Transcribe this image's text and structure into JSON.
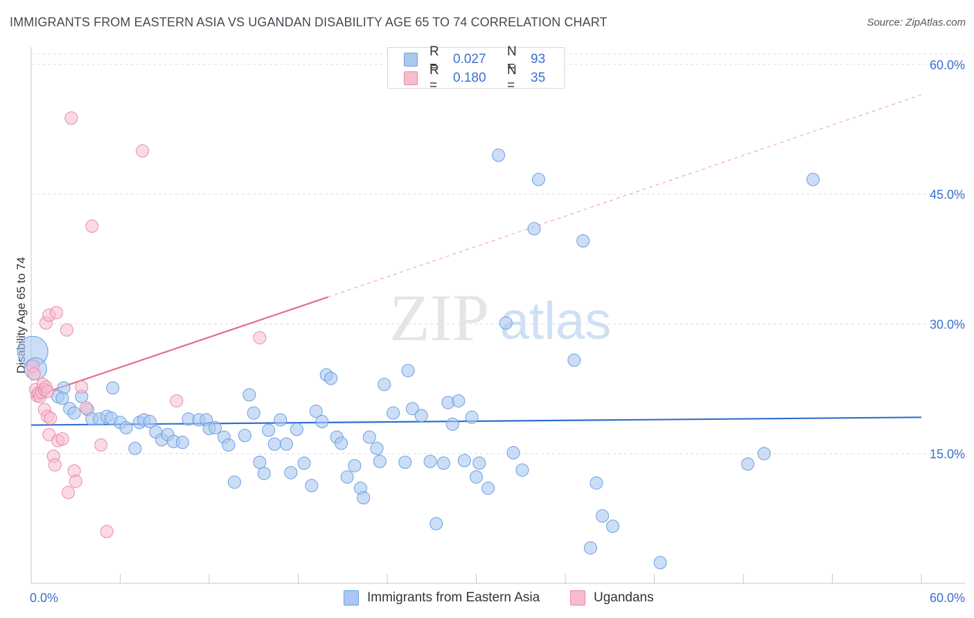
{
  "title": "IMMIGRANTS FROM EASTERN ASIA VS UGANDAN DISABILITY AGE 65 TO 74 CORRELATION CHART",
  "source": "Source: ZipAtlas.com",
  "watermark": {
    "zip": "ZIP",
    "atlas": "atlas"
  },
  "colors": {
    "blue_fill": "#aac8f0",
    "blue_stroke": "#6a9ee0",
    "blue_line": "#2e6fd0",
    "pink_fill": "#f6bcd0",
    "pink_stroke": "#e889aa",
    "pink_line": "#e46a94",
    "axis_text": "#3a6fd0",
    "grid": "#dcdcdc"
  },
  "legend": {
    "rows": [
      {
        "r_label": "R =",
        "r_value": "0.027",
        "n_label": "N =",
        "n_value": "93"
      },
      {
        "r_label": "R =",
        "r_value": "0.180",
        "n_label": "N =",
        "n_value": "35"
      }
    ]
  },
  "bottom_legend": {
    "blue": "Immigrants from Eastern Asia",
    "pink": "Ugandans"
  },
  "chart_data": {
    "type": "scatter",
    "title": "IMMIGRANTS FROM EASTERN ASIA VS UGANDAN DISABILITY AGE 65 TO 74 CORRELATION CHART",
    "xlabel": "",
    "ylabel": "Disability Age 65 to 74",
    "xlim": [
      0,
      60
    ],
    "ylim": [
      0,
      62
    ],
    "x_tick_labels": [
      "0.0%",
      "60.0%"
    ],
    "y_ticks": [
      15,
      30,
      45,
      60
    ],
    "y_tick_labels": [
      "15.0%",
      "30.0%",
      "45.0%",
      "60.0%"
    ],
    "grid": true,
    "legend_position": "top-center",
    "series": [
      {
        "name": "Immigrants from Eastern Asia",
        "r": 0.027,
        "n": 93,
        "trend": {
          "x0": 0,
          "y0": 18.3,
          "x1": 60,
          "y1": 19.2
        },
        "points": [
          {
            "x": 0.1,
            "y": 26.8,
            "s": 22
          },
          {
            "x": 0.3,
            "y": 24.8,
            "s": 16
          },
          {
            "x": 2.2,
            "y": 22.6,
            "s": 9
          },
          {
            "x": 1.8,
            "y": 21.6,
            "s": 9
          },
          {
            "x": 2.1,
            "y": 21.4,
            "s": 9
          },
          {
            "x": 3.4,
            "y": 21.6,
            "s": 9
          },
          {
            "x": 5.5,
            "y": 22.6,
            "s": 9
          },
          {
            "x": 2.6,
            "y": 20.2,
            "s": 9
          },
          {
            "x": 3.8,
            "y": 20.1,
            "s": 9
          },
          {
            "x": 2.9,
            "y": 19.7,
            "s": 9
          },
          {
            "x": 4.1,
            "y": 19.0,
            "s": 9
          },
          {
            "x": 4.6,
            "y": 19.0,
            "s": 9
          },
          {
            "x": 5.1,
            "y": 19.3,
            "s": 9
          },
          {
            "x": 5.4,
            "y": 19.1,
            "s": 9
          },
          {
            "x": 6.0,
            "y": 18.6,
            "s": 9
          },
          {
            "x": 6.4,
            "y": 18.0,
            "s": 9
          },
          {
            "x": 7.3,
            "y": 18.6,
            "s": 9
          },
          {
            "x": 7.6,
            "y": 18.9,
            "s": 9
          },
          {
            "x": 8.0,
            "y": 18.7,
            "s": 9
          },
          {
            "x": 8.4,
            "y": 17.5,
            "s": 9
          },
          {
            "x": 8.8,
            "y": 16.6,
            "s": 9
          },
          {
            "x": 9.2,
            "y": 17.2,
            "s": 9
          },
          {
            "x": 9.6,
            "y": 16.4,
            "s": 9
          },
          {
            "x": 10.2,
            "y": 16.3,
            "s": 9
          },
          {
            "x": 10.6,
            "y": 19.0,
            "s": 9
          },
          {
            "x": 11.3,
            "y": 18.9,
            "s": 9
          },
          {
            "x": 11.8,
            "y": 18.9,
            "s": 9
          },
          {
            "x": 12.0,
            "y": 17.9,
            "s": 9
          },
          {
            "x": 12.4,
            "y": 18.0,
            "s": 9
          },
          {
            "x": 13.0,
            "y": 16.9,
            "s": 9
          },
          {
            "x": 13.3,
            "y": 16.0,
            "s": 9
          },
          {
            "x": 7.0,
            "y": 15.6,
            "s": 9
          },
          {
            "x": 13.7,
            "y": 11.7,
            "s": 9
          },
          {
            "x": 14.4,
            "y": 17.1,
            "s": 9
          },
          {
            "x": 14.7,
            "y": 21.8,
            "s": 9
          },
          {
            "x": 15.0,
            "y": 19.7,
            "s": 9
          },
          {
            "x": 15.4,
            "y": 14.0,
            "s": 9
          },
          {
            "x": 15.7,
            "y": 12.7,
            "s": 9
          },
          {
            "x": 16.0,
            "y": 17.7,
            "s": 9
          },
          {
            "x": 16.4,
            "y": 16.1,
            "s": 9
          },
          {
            "x": 16.8,
            "y": 18.9,
            "s": 9
          },
          {
            "x": 17.2,
            "y": 16.1,
            "s": 9
          },
          {
            "x": 17.5,
            "y": 12.8,
            "s": 9
          },
          {
            "x": 17.9,
            "y": 17.8,
            "s": 9
          },
          {
            "x": 18.4,
            "y": 13.9,
            "s": 9
          },
          {
            "x": 18.9,
            "y": 11.3,
            "s": 9
          },
          {
            "x": 19.2,
            "y": 19.9,
            "s": 9
          },
          {
            "x": 19.6,
            "y": 18.7,
            "s": 9
          },
          {
            "x": 19.9,
            "y": 24.1,
            "s": 9
          },
          {
            "x": 20.2,
            "y": 23.7,
            "s": 9
          },
          {
            "x": 20.6,
            "y": 16.9,
            "s": 9
          },
          {
            "x": 20.9,
            "y": 16.2,
            "s": 9
          },
          {
            "x": 21.3,
            "y": 12.3,
            "s": 9
          },
          {
            "x": 21.8,
            "y": 13.6,
            "s": 9
          },
          {
            "x": 22.2,
            "y": 11.0,
            "s": 9
          },
          {
            "x": 22.4,
            "y": 9.9,
            "s": 9
          },
          {
            "x": 22.8,
            "y": 16.9,
            "s": 9
          },
          {
            "x": 23.3,
            "y": 15.6,
            "s": 9
          },
          {
            "x": 23.5,
            "y": 14.1,
            "s": 9
          },
          {
            "x": 23.8,
            "y": 23.0,
            "s": 9
          },
          {
            "x": 24.4,
            "y": 19.7,
            "s": 9
          },
          {
            "x": 25.2,
            "y": 14.0,
            "s": 9
          },
          {
            "x": 25.4,
            "y": 24.6,
            "s": 9
          },
          {
            "x": 25.7,
            "y": 20.2,
            "s": 9
          },
          {
            "x": 26.3,
            "y": 19.4,
            "s": 9
          },
          {
            "x": 26.9,
            "y": 14.1,
            "s": 9
          },
          {
            "x": 27.3,
            "y": 6.9,
            "s": 9
          },
          {
            "x": 27.8,
            "y": 13.9,
            "s": 9
          },
          {
            "x": 28.1,
            "y": 20.9,
            "s": 9
          },
          {
            "x": 28.4,
            "y": 18.4,
            "s": 9
          },
          {
            "x": 28.8,
            "y": 21.1,
            "s": 9
          },
          {
            "x": 29.2,
            "y": 14.2,
            "s": 9
          },
          {
            "x": 29.7,
            "y": 19.2,
            "s": 9
          },
          {
            "x": 30.0,
            "y": 12.3,
            "s": 9
          },
          {
            "x": 30.2,
            "y": 13.9,
            "s": 9
          },
          {
            "x": 30.8,
            "y": 11.0,
            "s": 9
          },
          {
            "x": 31.5,
            "y": 49.5,
            "s": 9
          },
          {
            "x": 32.0,
            "y": 30.1,
            "s": 9
          },
          {
            "x": 32.5,
            "y": 15.1,
            "s": 9
          },
          {
            "x": 33.1,
            "y": 13.1,
            "s": 9
          },
          {
            "x": 33.9,
            "y": 41.0,
            "s": 9
          },
          {
            "x": 34.2,
            "y": 46.7,
            "s": 9
          },
          {
            "x": 36.6,
            "y": 25.8,
            "s": 9
          },
          {
            "x": 37.2,
            "y": 39.6,
            "s": 9
          },
          {
            "x": 38.1,
            "y": 11.6,
            "s": 9
          },
          {
            "x": 38.5,
            "y": 7.8,
            "s": 9
          },
          {
            "x": 39.2,
            "y": 6.6,
            "s": 9
          },
          {
            "x": 37.7,
            "y": 4.1,
            "s": 9
          },
          {
            "x": 42.4,
            "y": 2.4,
            "s": 9
          },
          {
            "x": 48.3,
            "y": 13.8,
            "s": 9
          },
          {
            "x": 49.4,
            "y": 15.0,
            "s": 9
          },
          {
            "x": 52.7,
            "y": 46.7,
            "s": 9
          }
        ]
      },
      {
        "name": "Ugandans",
        "r": 0.18,
        "n": 35,
        "trend_solid": {
          "x0": 0,
          "y0": 21.5,
          "x1": 20,
          "y1": 33.1
        },
        "trend_dashed": {
          "x0": 20,
          "y0": 33.1,
          "x1": 60,
          "y1": 56.5
        },
        "points": [
          {
            "x": 0.1,
            "y": 25.1,
            "s": 9
          },
          {
            "x": 0.2,
            "y": 24.2,
            "s": 9
          },
          {
            "x": 0.3,
            "y": 22.4,
            "s": 9
          },
          {
            "x": 0.4,
            "y": 21.7,
            "s": 9
          },
          {
            "x": 0.5,
            "y": 22.0,
            "s": 9
          },
          {
            "x": 0.6,
            "y": 21.6,
            "s": 9
          },
          {
            "x": 0.7,
            "y": 22.1,
            "s": 9
          },
          {
            "x": 0.8,
            "y": 23.0,
            "s": 9
          },
          {
            "x": 0.9,
            "y": 22.4,
            "s": 9
          },
          {
            "x": 1.0,
            "y": 22.7,
            "s": 9
          },
          {
            "x": 1.1,
            "y": 22.2,
            "s": 9
          },
          {
            "x": 0.9,
            "y": 20.1,
            "s": 9
          },
          {
            "x": 1.0,
            "y": 30.1,
            "s": 9
          },
          {
            "x": 1.2,
            "y": 31.0,
            "s": 9
          },
          {
            "x": 1.7,
            "y": 31.3,
            "s": 9
          },
          {
            "x": 2.4,
            "y": 29.3,
            "s": 9
          },
          {
            "x": 1.1,
            "y": 19.3,
            "s": 9
          },
          {
            "x": 1.2,
            "y": 17.2,
            "s": 9
          },
          {
            "x": 1.3,
            "y": 19.1,
            "s": 9
          },
          {
            "x": 1.5,
            "y": 14.7,
            "s": 9
          },
          {
            "x": 1.6,
            "y": 13.7,
            "s": 9
          },
          {
            "x": 1.8,
            "y": 16.5,
            "s": 9
          },
          {
            "x": 2.1,
            "y": 16.7,
            "s": 9
          },
          {
            "x": 2.5,
            "y": 10.5,
            "s": 9
          },
          {
            "x": 2.7,
            "y": 53.8,
            "s": 9
          },
          {
            "x": 2.9,
            "y": 13.0,
            "s": 9
          },
          {
            "x": 3.0,
            "y": 11.8,
            "s": 9
          },
          {
            "x": 3.4,
            "y": 22.7,
            "s": 9
          },
          {
            "x": 3.7,
            "y": 20.3,
            "s": 9
          },
          {
            "x": 4.1,
            "y": 41.3,
            "s": 9
          },
          {
            "x": 4.7,
            "y": 16.0,
            "s": 9
          },
          {
            "x": 5.1,
            "y": 6.0,
            "s": 9
          },
          {
            "x": 7.5,
            "y": 50.0,
            "s": 9
          },
          {
            "x": 9.8,
            "y": 21.1,
            "s": 9
          },
          {
            "x": 15.4,
            "y": 28.4,
            "s": 9
          }
        ]
      }
    ]
  }
}
